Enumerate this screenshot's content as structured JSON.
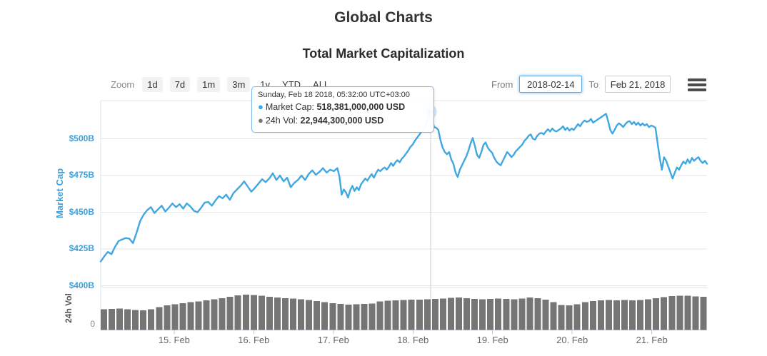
{
  "page": {
    "title": "Global Charts"
  },
  "chart": {
    "subtitle": "Total Market Capitalization",
    "toolbar": {
      "zoom_label": "Zoom",
      "zoom_buttons": [
        "1d",
        "7d",
        "1m",
        "3m",
        "1y",
        "YTD",
        "ALL"
      ],
      "from_label": "From",
      "from_value": "2018-02-14",
      "to_label": "To",
      "to_value": "Feb 21, 2018",
      "menu_icon": "hamburger-icon"
    },
    "tooltip": {
      "header": "Sunday, Feb 18 2018, 05:32:00 UTC+03:00",
      "rows": [
        {
          "bullet": "●",
          "label": "Market Cap:",
          "value": "518,381,000,000 USD",
          "color": "#41a7e0"
        },
        {
          "bullet": "●",
          "label": "24h Vol:",
          "value": "22,944,300,000 USD",
          "color": "#757575"
        }
      ]
    },
    "colors": {
      "line_blue": "#41a7e0",
      "axis_label_blue": "#3da0da",
      "volume_gray": "#757575",
      "gridline": "#e6e6e6"
    }
  },
  "chart_data": {
    "type": "line",
    "title": "Total Market Capitalization",
    "x_units": "days since 2018-02-14 00:00",
    "x_axis": {
      "domain": [
        0.077,
        7.694
      ],
      "day_ticks": [
        1,
        2,
        3,
        4,
        5,
        6,
        7
      ],
      "labels": [
        "15. Feb",
        "16. Feb",
        "17. Feb",
        "18. Feb",
        "19. Feb",
        "20. Feb",
        "21. Feb"
      ]
    },
    "y_axis": {
      "title": "Market Cap",
      "units": "USD billions",
      "min": 400,
      "max": 526,
      "tick_values": [
        500,
        475,
        450,
        425,
        400
      ],
      "tick_labels": [
        "$500B",
        "$475B",
        "$450B",
        "$425B",
        "$400B"
      ]
    },
    "vol_axis": {
      "title": "24h Vol",
      "units": "USD billions",
      "max": 31.5,
      "tick_labels": [
        "0"
      ]
    },
    "crosshair_x_day": 4.222,
    "marker": {
      "x_day": 4.211,
      "value": 518.381
    },
    "series": [
      {
        "name": "Market Cap",
        "type": "line",
        "color": "#41a7e0",
        "units": "USD billions",
        "segments": [
          {
            "x_start": 0.077,
            "x_step": 0.04505,
            "values": [
              416.5,
              420,
              423,
              421.5,
              426.5,
              430.5,
              431.5,
              432.5,
              432,
              429,
              436,
              444,
              448.5,
              451.5,
              453.5,
              449.5,
              452,
              454.5,
              450.5,
              453,
              456,
              453.5,
              455.5,
              452.5,
              456,
              454,
              451,
              450,
              453,
              456.5,
              457,
              454.5,
              458,
              461,
              459.5,
              462,
              458.5,
              463,
              465.5,
              468,
              471,
              467.5,
              464,
              466.5,
              469.5,
              472.5,
              470.5,
              473,
              476.5,
              472,
              475,
              471,
              473.5,
              467,
              470,
              472,
              475,
              472,
              476,
              478.5,
              475.5,
              477.5,
              480,
              477,
              479,
              478,
              480
            ]
          },
          {
            "x_start": 3.077,
            "x_step": 0.027,
            "values": [
              474,
              462,
              465.5,
              463.5,
              460,
              465,
              468,
              464.5,
              467,
              465,
              469,
              471,
              473,
              471.5,
              474,
              476,
              473.5,
              476.5,
              479,
              478,
              479.5,
              480.5,
              479,
              481,
              483.5,
              481.5,
              484,
              485.5,
              484,
              486.5,
              488,
              490,
              492,
              494.5,
              496,
              498.5,
              500.5,
              502.5,
              504.5,
              506,
              509,
              513,
              518.4,
              514,
              508,
              507.5,
              506,
              499,
              494,
              491,
              489.5,
              491,
              486,
              483,
              477,
              474,
              479,
              482,
              485,
              488,
              492,
              497,
              500.5,
              495,
              489,
              487,
              491,
              496,
              497.5,
              494,
              492,
              490.5,
              487,
              484.5,
              483,
              482,
              485,
              488,
              491,
              489.5,
              487.5,
              489,
              491.5,
              493,
              494.5,
              496,
              498.5,
              500,
              502,
              503,
              500,
              499.5,
              502,
              503.5,
              504,
              503,
              505,
              506.5,
              505,
              507,
              505.5,
              505,
              506,
              507,
              508.5,
              506,
              507.5,
              505.5,
              507,
              506,
              508,
              510,
              508.5,
              511,
              512.5,
              511.5,
              512,
              513.5,
              511,
              512,
              513,
              514,
              515,
              516,
              517,
              512,
              506,
              503.5,
              506,
              509,
              510.5,
              509.5,
              508,
              510,
              511.5,
              512,
              510,
              511.5,
              509.5,
              511,
              509,
              510.5,
              509,
              510,
              508,
              509,
              508.5,
              507.5,
              497,
              487,
              479,
              487.5,
              485,
              481,
              477,
              473,
              477,
              480.5,
              479,
              482,
              484.5,
              483,
              486,
              483.5,
              487,
              485,
              486.5,
              487.5,
              485,
              483.5,
              485,
              483
            ]
          }
        ]
      },
      {
        "name": "24h Vol",
        "type": "bar",
        "color": "#757575",
        "units": "USD billions",
        "x_start": 0.117,
        "x_step": 0.0991,
        "values": [
          15.2,
          15.5,
          15.8,
          15.2,
          14.7,
          14.4,
          15.2,
          16.8,
          18.1,
          18.9,
          19.7,
          20.5,
          21.0,
          21.8,
          22.6,
          23.4,
          24.4,
          25.5,
          26.0,
          25.7,
          25.2,
          24.4,
          23.9,
          23.4,
          23.1,
          22.6,
          22.1,
          21.3,
          20.5,
          19.7,
          19.2,
          18.6,
          18.9,
          19.2,
          19.4,
          21.0,
          21.5,
          21.8,
          22.1,
          22.2,
          22.3,
          22.6,
          22.8,
          23.1,
          23.6,
          23.8,
          23.4,
          22.8,
          22.6,
          22.8,
          23.1,
          22.9,
          22.6,
          23.1,
          23.8,
          23.4,
          22.3,
          20.5,
          18.4,
          18.1,
          18.9,
          20.5,
          21.3,
          21.8,
          22.1,
          21.8,
          22.1,
          21.8,
          22.1,
          22.6,
          23.4,
          24.2,
          24.9,
          25.2,
          25.2,
          24.7,
          24.4
        ]
      }
    ]
  }
}
